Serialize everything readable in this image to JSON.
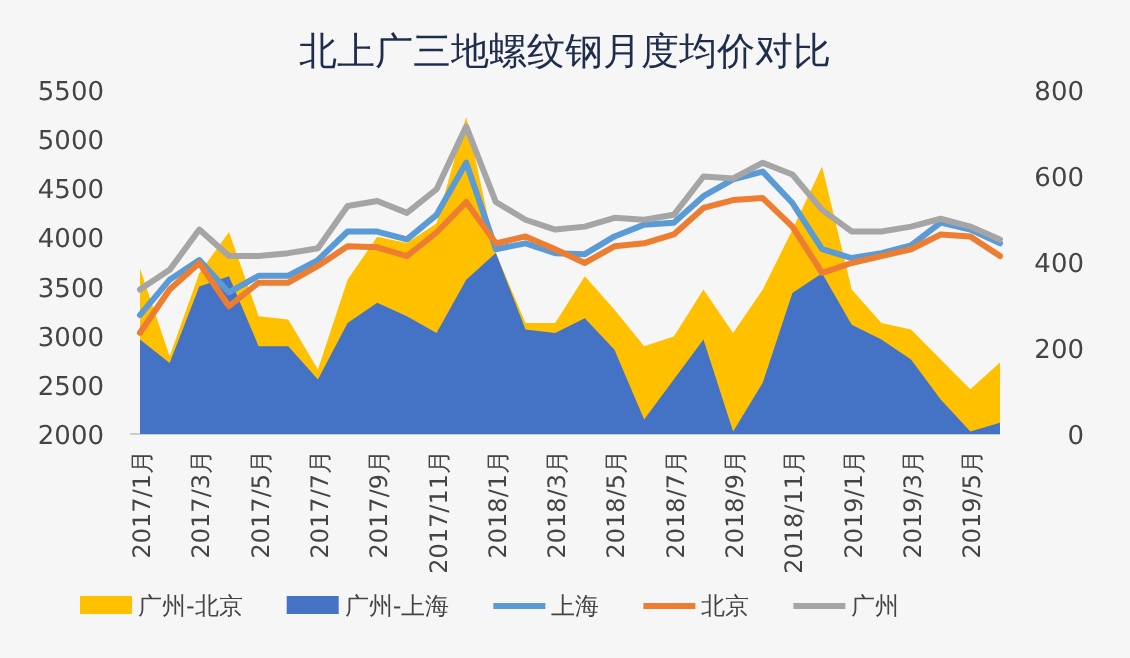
{
  "chart_data": {
    "type": "line",
    "title": "北上广三地螺纹钢月度均价对比",
    "categories": [
      "2017/1月",
      null,
      "2017/3月",
      null,
      "2017/5月",
      null,
      "2017/7月",
      null,
      "2017/9月",
      null,
      "2017/11月",
      null,
      "2018/1月",
      null,
      "2018/3月",
      null,
      "2018/5月",
      null,
      "2018/7月",
      null,
      "2018/9月",
      null,
      "2018/11月",
      null,
      "2019/1月",
      null,
      "2019/3月",
      null,
      "2019/5月",
      null
    ],
    "series": [
      {
        "name": "广州-北京",
        "type": "area",
        "axis": "y2",
        "color": "#ffc000",
        "values": [
          385,
          181,
          374,
          470,
          274,
          266,
          150,
          359,
          459,
          444,
          490,
          738,
          421,
          258,
          258,
          367,
          289,
          204,
          227,
          336,
          235,
          336,
          475,
          622,
          336,
          258,
          243,
          173,
          104,
          166
        ]
      },
      {
        "name": "广州-上海",
        "type": "area",
        "axis": "y2",
        "color": "#4472c4",
        "values": [
          220,
          165,
          343,
          367,
          204,
          204,
          127,
          258,
          305,
          274,
          235,
          359,
          421,
          243,
          235,
          269,
          196,
          34,
          127,
          220,
          6,
          119,
          328,
          374,
          254,
          220,
          173,
          80,
          6,
          26
        ]
      },
      {
        "name": "上海",
        "color": "#5b9bd5",
        "values": [
          3210,
          3570,
          3770,
          3440,
          3610,
          3610,
          3770,
          4060,
          4060,
          3980,
          4230,
          4760,
          3880,
          3940,
          3840,
          3830,
          4010,
          4130,
          4150,
          4420,
          4590,
          4670,
          4350,
          3880,
          3790,
          3840,
          3920,
          4150,
          4080,
          3940
        ]
      },
      {
        "name": "北京",
        "color": "#ed7d31",
        "values": [
          3030,
          3470,
          3740,
          3300,
          3540,
          3540,
          3710,
          3910,
          3900,
          3810,
          4050,
          4360,
          3940,
          4010,
          3880,
          3740,
          3910,
          3940,
          4030,
          4300,
          4380,
          4400,
          4110,
          3640,
          3740,
          3810,
          3880,
          4030,
          4010,
          3810
        ]
      },
      {
        "name": "广州",
        "color": "#a5a5a5",
        "values": [
          3470,
          3670,
          4080,
          3810,
          3810,
          3840,
          3890,
          4320,
          4370,
          4250,
          4490,
          5130,
          4360,
          4180,
          4080,
          4110,
          4200,
          4180,
          4230,
          4620,
          4600,
          4760,
          4640,
          4280,
          4060,
          4060,
          4110,
          4190,
          4110,
          3980
        ]
      }
    ],
    "ylim": [
      2000,
      5500
    ],
    "yticks": [
      2000,
      2500,
      3000,
      3500,
      4000,
      4500,
      5000,
      5500
    ],
    "y2lim": [
      0,
      800
    ],
    "y2ticks": [
      0,
      200,
      400,
      600,
      800
    ],
    "legend": "bottom",
    "grid": false
  }
}
